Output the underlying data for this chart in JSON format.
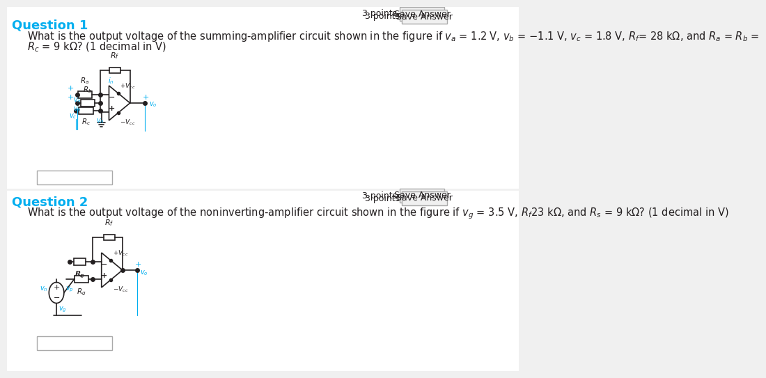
{
  "bg_color": "#f0f0f0",
  "white_color": "#ffffff",
  "cyan_color": "#00AEEF",
  "dark_color": "#231F20",
  "gray_color": "#808080",
  "light_blue_bg": "#e8f4f8",
  "q1_title": "Question 1",
  "q1_text_line1": "What is the output voltage of the summing-amplifier circuit shown in the figure if $v_a$ = 1.2 V, $v_b$ = −1.1 V, $v_c$ = 1.8 V, $R_f$= 28 kΩ, and $R_a$ = $R_b$ =",
  "q1_text_line2": "$R_c$ = 9 kΩ? (1 decimal in V)",
  "q2_title": "Question 2",
  "q2_text": "What is the output voltage of the noninverting-amplifier circuit shown in the figure if $v_g$ = 3.5 V, $R_f$23 kΩ, and $R_s$ = 9 kΩ? (1 decimal in V)",
  "points_text": "3 points",
  "save_text": "Save Answer",
  "title_fontsize": 13,
  "body_fontsize": 10.5
}
